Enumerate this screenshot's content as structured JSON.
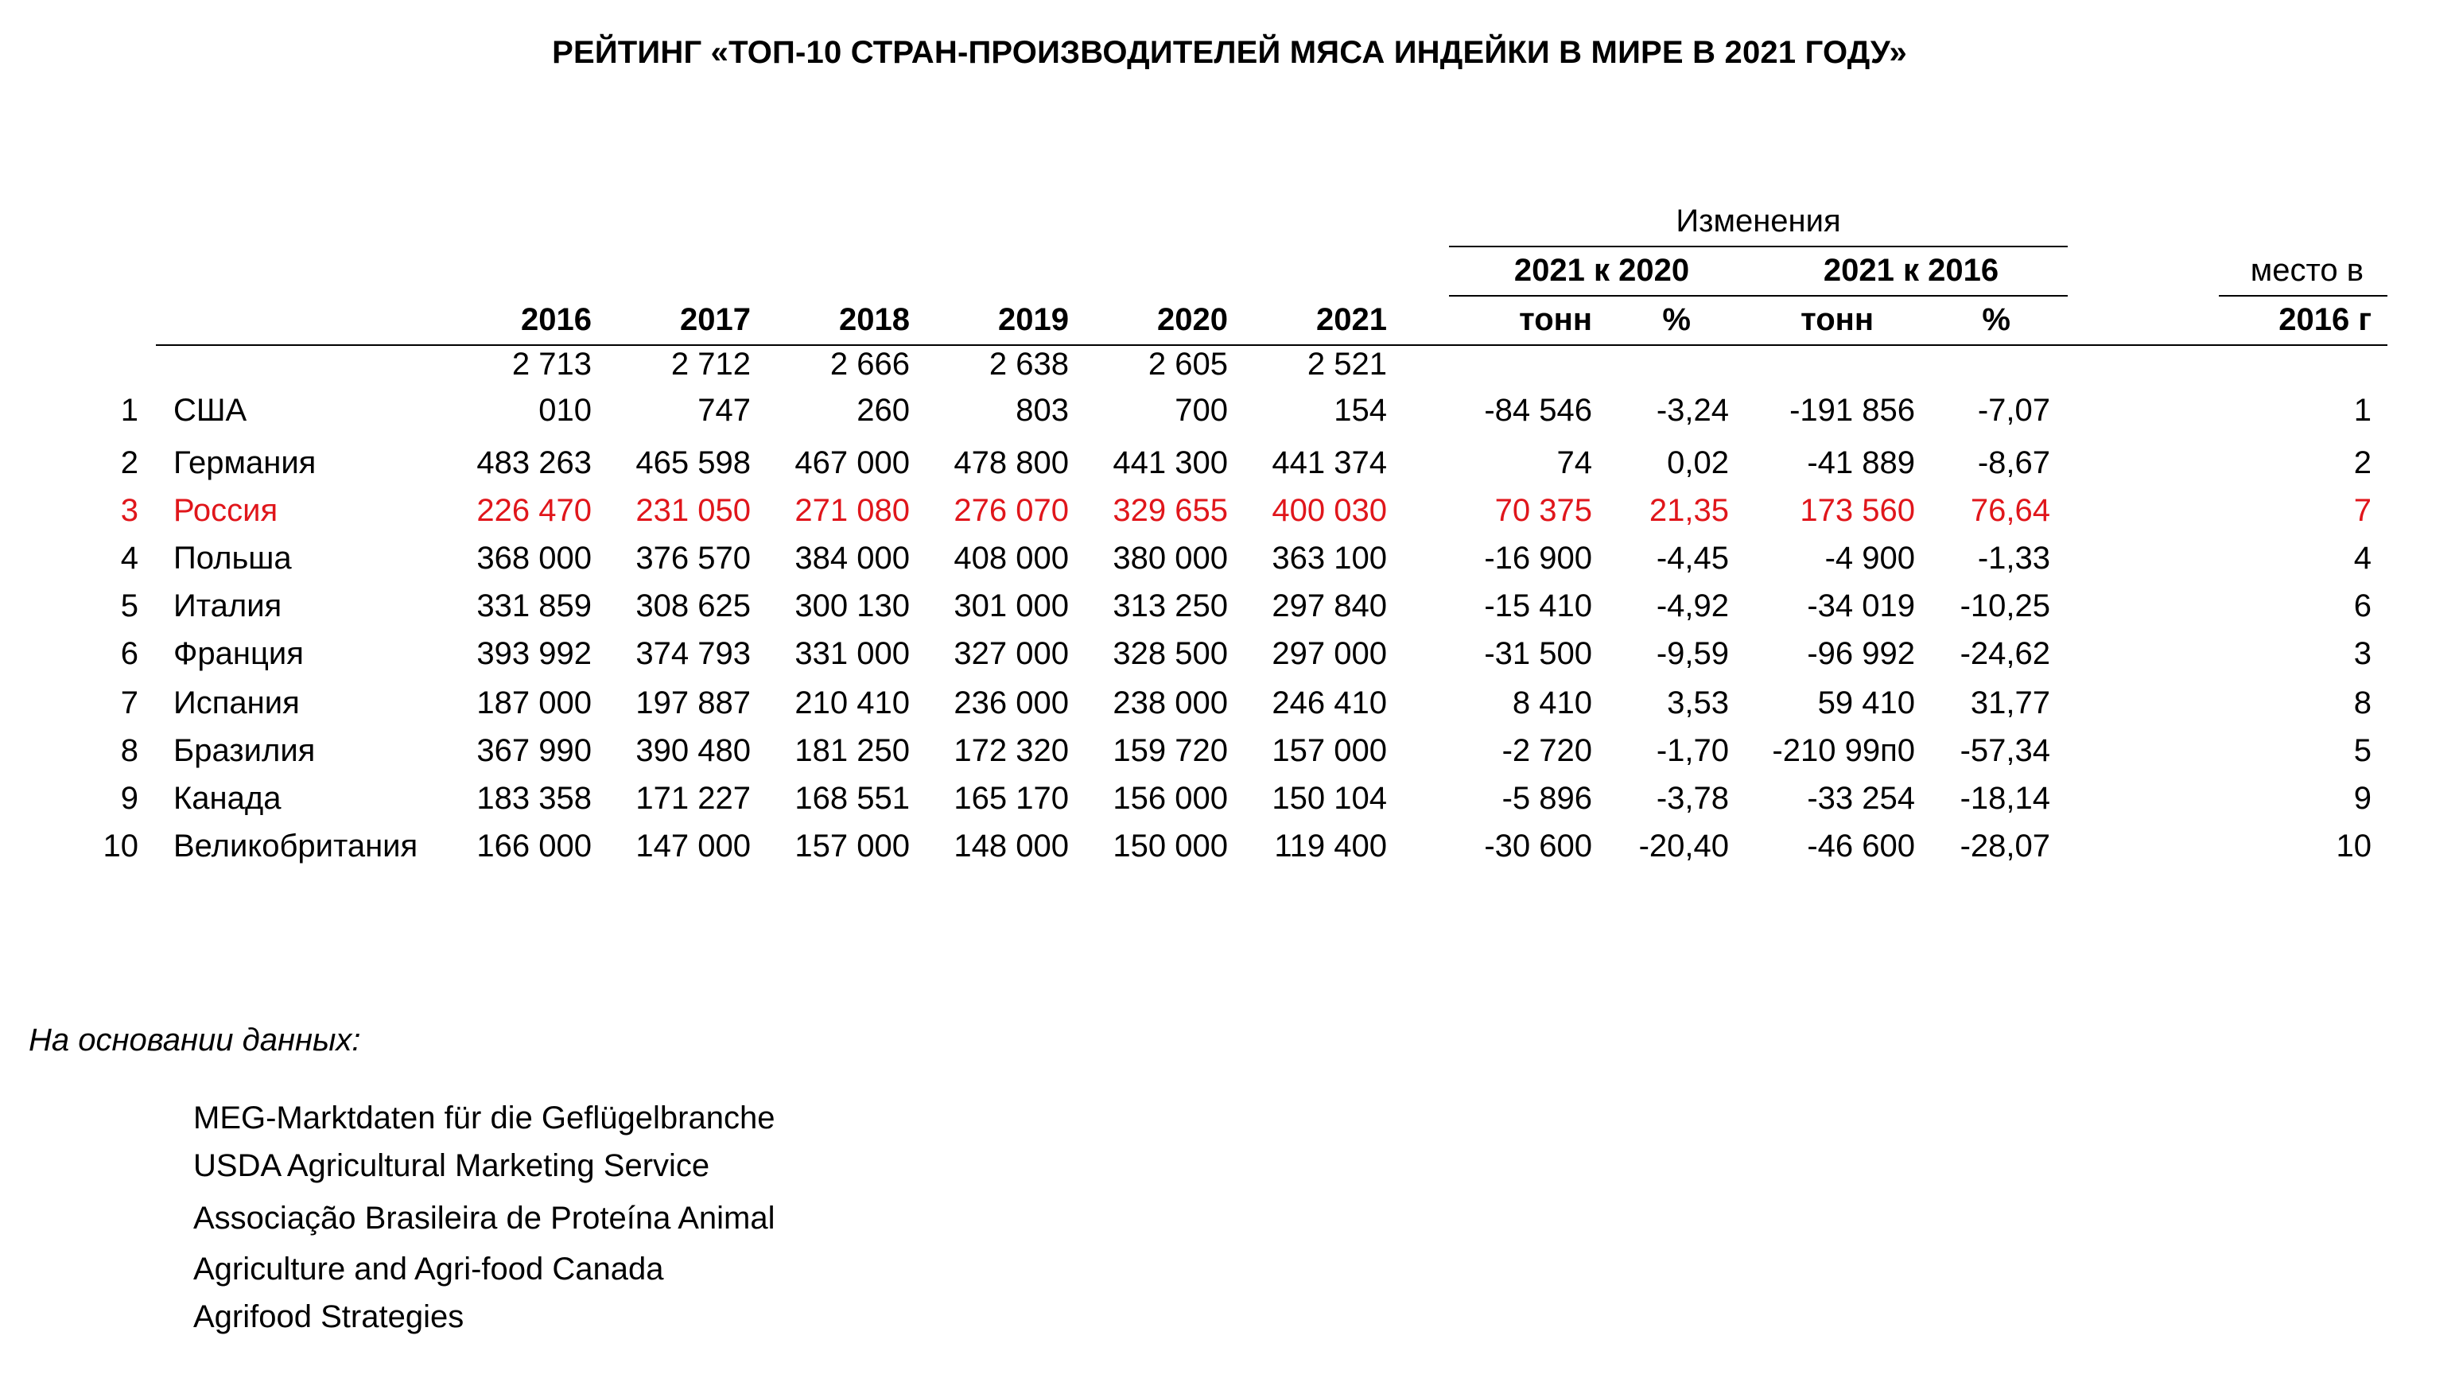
{
  "title": "РЕЙТИНГ «ТОП-10 СТРАН-ПРОИЗВОДИТЕЛЕЙ МЯСА ИНДЕЙКИ В МИРЕ В 2021 ГОДУ»",
  "header": {
    "changes": "Изменения",
    "change_2021_2020": "2021 к 2020",
    "change_2021_2016": "2021 к 2016",
    "place_line1": "место в",
    "place_line2": "2016 г",
    "years": [
      "2016",
      "2017",
      "2018",
      "2019",
      "2020",
      "2021"
    ],
    "tons": "тонн",
    "pct": "%"
  },
  "rows": [
    {
      "n": "1",
      "country": "США",
      "v2016": "2 713\n010",
      "v2017": "2 712\n747",
      "v2018": "2 666\n260",
      "v2019": "2 638\n803",
      "v2020": "2 605\n700",
      "v2021": "2 521\n154",
      "d1t": "-84 546",
      "d1p": "-3,24",
      "d2t": "-191 856",
      "d2p": "-7,07",
      "place": "1",
      "highlight": false
    },
    {
      "n": "2",
      "country": "Германия",
      "v2016": "483 263",
      "v2017": "465 598",
      "v2018": "467 000",
      "v2019": "478 800",
      "v2020": "441 300",
      "v2021": "441 374",
      "d1t": "74",
      "d1p": "0,02",
      "d2t": "-41 889",
      "d2p": "-8,67",
      "place": "2",
      "highlight": false
    },
    {
      "n": "3",
      "country": "Россия",
      "v2016": "226 470",
      "v2017": "231 050",
      "v2018": "271 080",
      "v2019": "276 070",
      "v2020": "329 655",
      "v2021": "400 030",
      "d1t": "70 375",
      "d1p": "21,35",
      "d2t": "173 560",
      "d2p": "76,64",
      "place": "7",
      "highlight": true
    },
    {
      "n": "4",
      "country": "Польша",
      "v2016": "368 000",
      "v2017": "376 570",
      "v2018": "384 000",
      "v2019": "408 000",
      "v2020": "380 000",
      "v2021": "363 100",
      "d1t": "-16 900",
      "d1p": "-4,45",
      "d2t": "-4 900",
      "d2p": "-1,33",
      "place": "4",
      "highlight": false
    },
    {
      "n": "5",
      "country": "Италия",
      "v2016": "331 859",
      "v2017": "308 625",
      "v2018": "300 130",
      "v2019": "301 000",
      "v2020": "313 250",
      "v2021": "297 840",
      "d1t": "-15 410",
      "d1p": "-4,92",
      "d2t": "-34 019",
      "d2p": "-10,25",
      "place": "6",
      "highlight": false
    },
    {
      "n": "6",
      "country": "Франция",
      "v2016": "393 992",
      "v2017": "374 793",
      "v2018": "331 000",
      "v2019": "327 000",
      "v2020": "328 500",
      "v2021": "297 000",
      "d1t": "-31 500",
      "d1p": "-9,59",
      "d2t": "-96 992",
      "d2p": "-24,62",
      "place": "3",
      "highlight": false
    },
    {
      "n": "7",
      "country": "Испания",
      "v2016": "187 000",
      "v2017": "197 887",
      "v2018": "210 410",
      "v2019": "236 000",
      "v2020": "238 000",
      "v2021": "246 410",
      "d1t": "8 410",
      "d1p": "3,53",
      "d2t": "59 410",
      "d2p": "31,77",
      "place": "8",
      "highlight": false
    },
    {
      "n": "8",
      "country": "Бразилия",
      "v2016": "367 990",
      "v2017": "390 480",
      "v2018": "181 250",
      "v2019": "172 320",
      "v2020": "159 720",
      "v2021": "157 000",
      "d1t": "-2 720",
      "d1p": "-1,70",
      "d2t": "-210 99п0",
      "d2p": "-57,34",
      "place": "5",
      "highlight": false
    },
    {
      "n": "9",
      "country": "Канада",
      "v2016": "183 358",
      "v2017": "171 227",
      "v2018": "168 551",
      "v2019": "165 170",
      "v2020": "156 000",
      "v2021": "150 104",
      "d1t": "-5 896",
      "d1p": "-3,78",
      "d2t": "-33 254",
      "d2p": "-18,14",
      "place": "9",
      "highlight": false
    },
    {
      "n": "10",
      "country": "Великобритания",
      "v2016": "166 000",
      "v2017": "147 000",
      "v2018": "157 000",
      "v2019": "148 000",
      "v2020": "150 000",
      "v2021": "119 400",
      "d1t": "-30 600",
      "d1p": "-20,40",
      "d2t": "-46 600",
      "d2p": "-28,07",
      "place": "10",
      "highlight": false
    }
  ],
  "sources": {
    "label": "На основании данных:",
    "items": [
      "MEG-Marktdaten für die Geflügelbranche",
      "USDA Agricultural Marketing Service",
      "Associação Brasileira de Proteína Animal",
      "Agriculture and Agri-food Canada",
      "Agrifood Strategies"
    ]
  },
  "colors": {
    "highlight": "#e0161b",
    "text": "#000000",
    "background": "#ffffff"
  }
}
